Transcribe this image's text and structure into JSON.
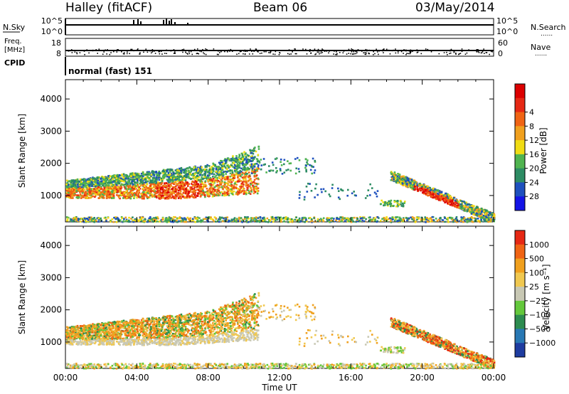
{
  "header": {
    "title": "Halley (fitACF)",
    "beam": "Beam 06",
    "date": "03/May/2014"
  },
  "status_panels": {
    "nsky_label": "N.Sky",
    "nsearch_label": "N.Search",
    "nsky_ticks": [
      "10^5",
      "10^0"
    ],
    "nsearch_ticks": [
      "10^5",
      "10^0"
    ],
    "freq_label": "Freq.",
    "freq_unit": "[MHz]",
    "freq_ticks": [
      "18",
      "8"
    ],
    "nave_label": "Nave",
    "nave_ticks": [
      "60",
      "0"
    ],
    "cpid_label": "CPID",
    "cpid_value": "normal (fast) 151",
    "dotted": "......"
  },
  "chart_data": [
    {
      "type": "heatmap",
      "name": "power",
      "ylabel": "Slant Range [km]",
      "yticks": [
        1000,
        2000,
        3000,
        4000
      ],
      "ylim": [
        180,
        4600
      ],
      "xlim_hours": [
        0,
        24
      ],
      "colorbar": {
        "label": "Power [dB]",
        "ticks": [
          "4",
          "8",
          "12",
          "16",
          "20",
          "24",
          "28"
        ],
        "colors": [
          "#1414e6",
          "#1e50be",
          "#2d8c64",
          "#50b450",
          "#f0dc14",
          "#f0a01e",
          "#f06414",
          "#e62814",
          "#dc0000"
        ]
      }
    },
    {
      "type": "heatmap",
      "name": "velocity",
      "ylabel": "Slant Range [km]",
      "yticks": [
        1000,
        2000,
        3000,
        4000
      ],
      "ylim": [
        180,
        4600
      ],
      "xlim_hours": [
        0,
        24
      ],
      "xlabel": "Time UT",
      "xticks": [
        "00:00",
        "04:00",
        "08:00",
        "12:00",
        "16:00",
        "20:00",
        "00:00"
      ],
      "colorbar": {
        "label": "Velocity [m s⁻¹]",
        "ticks": [
          "1000",
          "500",
          "100",
          "25",
          "−25",
          "−100",
          "−500",
          "−1000"
        ],
        "colors": [
          "#1e3ca0",
          "#2878b4",
          "#2d8c50",
          "#64c83c",
          "#c8c8b4",
          "#f0c850",
          "#f0a01e",
          "#f06414",
          "#e62814"
        ]
      }
    }
  ]
}
